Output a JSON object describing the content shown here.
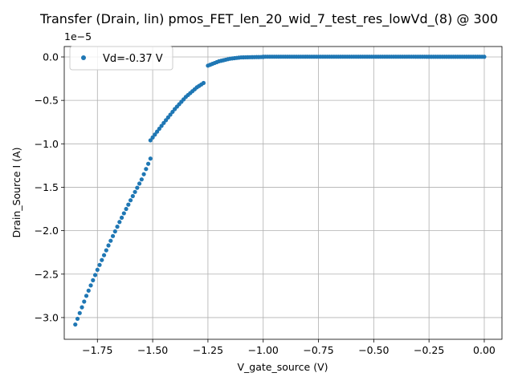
{
  "chart_data": {
    "type": "scatter",
    "title": "Transfer (Drain, lin) pmos_FET_len_20_wid_7_test_res_lowVd_(8) @ 300",
    "xlabel": "V_gate_source (V)",
    "ylabel": "Drain_Source I (A)",
    "y_offset_label": "1e−5",
    "xlim": [
      -1.9,
      0.08
    ],
    "ylim": [
      -3.25,
      0.12
    ],
    "y_unit_scale": 1e-05,
    "xticks": [
      -1.75,
      -1.5,
      -1.25,
      -1.0,
      -0.75,
      -0.5,
      -0.25,
      0.0
    ],
    "xtick_labels": [
      "−1.75",
      "−1.50",
      "−1.25",
      "−1.00",
      "−0.75",
      "−0.50",
      "−0.25",
      "0.00"
    ],
    "yticks": [
      0.0,
      -0.5,
      -1.0,
      -1.5,
      -2.0,
      -2.5,
      -3.0
    ],
    "ytick_labels": [
      "0.0",
      "−0.5",
      "−1.0",
      "−1.5",
      "−2.0",
      "−2.5",
      "−3.0"
    ],
    "grid": true,
    "legend_position": "top-left",
    "series": [
      {
        "name": "Vd=-0.37 V",
        "color": "#1f77b4",
        "marker": "circle",
        "segments": [
          {
            "x_range": [
              -1.85,
              -1.51
            ],
            "y_at": [
              [
                -1.85,
                -3.08
              ],
              [
                -1.8,
                -2.75
              ],
              [
                -1.75,
                -2.45
              ],
              [
                -1.7,
                -2.17
              ],
              [
                -1.65,
                -1.9
              ],
              [
                -1.6,
                -1.65
              ],
              [
                -1.55,
                -1.41
              ],
              [
                -1.51,
                -1.17
              ]
            ]
          },
          {
            "x_range": [
              -1.51,
              -1.27
            ],
            "y_at": [
              [
                -1.51,
                -0.96
              ],
              [
                -1.45,
                -0.76
              ],
              [
                -1.4,
                -0.6
              ],
              [
                -1.35,
                -0.46
              ],
              [
                -1.3,
                -0.35
              ],
              [
                -1.27,
                -0.3
              ]
            ]
          },
          {
            "x_range": [
              -1.25,
              -1.0
            ],
            "y_at": [
              [
                -1.25,
                -0.1
              ],
              [
                -1.2,
                -0.05
              ],
              [
                -1.15,
                -0.02
              ],
              [
                -1.1,
                -0.005
              ],
              [
                -1.0,
                0.0
              ]
            ]
          },
          {
            "x_range": [
              -1.0,
              0.0
            ],
            "y_at": [
              [
                -1.0,
                0.003
              ],
              [
                -0.5,
                0.003
              ],
              [
                0.0,
                0.002
              ]
            ]
          }
        ]
      }
    ]
  }
}
